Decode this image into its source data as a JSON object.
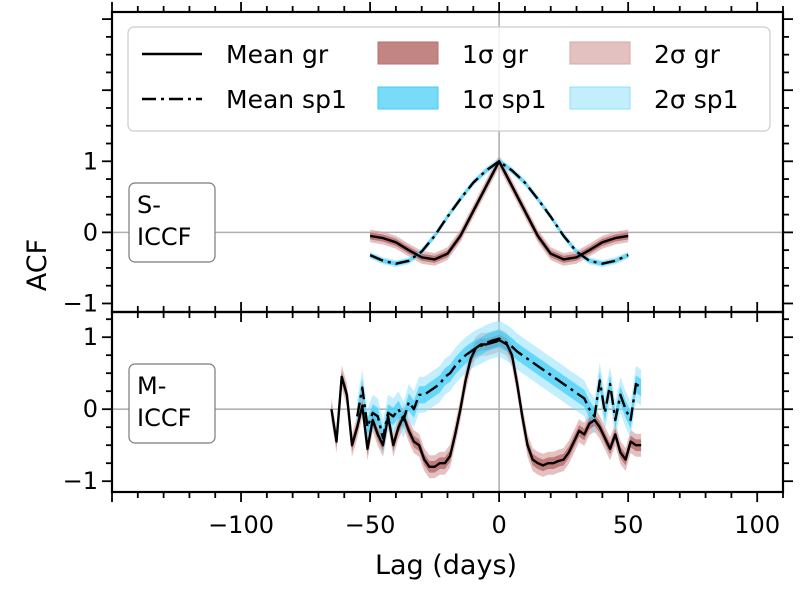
{
  "chart_data": {
    "type": "line",
    "xlabel": "Lag (days)",
    "ylabel": "ACF",
    "xlim": [
      -150,
      110
    ],
    "x_ticks": [
      {
        "value": -100,
        "label": "−100"
      },
      {
        "value": -50,
        "label": "−50"
      },
      {
        "value": 0,
        "label": "0"
      },
      {
        "value": 50,
        "label": "50"
      },
      {
        "value": 100,
        "label": "100"
      }
    ],
    "grid": "lines at x=0 and y=0",
    "legend": {
      "placement": "top",
      "entries": [
        {
          "label": "Mean gr",
          "kind": "solid-line",
          "color": "#000000"
        },
        {
          "label": "Mean sp1",
          "kind": "dashdot-line",
          "color": "#000000"
        },
        {
          "label": "1σ gr",
          "kind": "patch",
          "color": "#b86e6e",
          "alpha": 0.85
        },
        {
          "label": "1σ sp1",
          "kind": "patch",
          "color": "#3fcdf6",
          "alpha": 0.7
        },
        {
          "label": "2σ gr",
          "kind": "patch",
          "color": "#d9a6a6",
          "alpha": 0.7
        },
        {
          "label": "2σ sp1",
          "kind": "patch",
          "color": "#8fe0fb",
          "alpha": 0.55
        }
      ]
    },
    "panels": [
      {
        "name": "S-ICCF",
        "label_lines": [
          "S-",
          "ICCF"
        ],
        "ylim": [
          -1.12,
          3.1
        ],
        "y_ticks": [
          {
            "value": 1,
            "label": "1"
          },
          {
            "value": 0,
            "label": "0"
          },
          {
            "value": -1,
            "label": "−1"
          }
        ],
        "series": [
          {
            "name": "Mean gr",
            "style": "solid",
            "band1": 0.05,
            "band2": 0.09,
            "x": [
              -50,
              -45,
              -40,
              -35,
              -30,
              -25,
              -20,
              -15,
              -10,
              -5,
              0,
              5,
              10,
              15,
              20,
              25,
              30,
              35,
              40,
              45,
              50
            ],
            "y": [
              -0.05,
              -0.08,
              -0.14,
              -0.25,
              -0.35,
              -0.38,
              -0.3,
              -0.05,
              0.3,
              0.65,
              1.0,
              0.65,
              0.3,
              -0.05,
              -0.3,
              -0.38,
              -0.35,
              -0.25,
              -0.14,
              -0.08,
              -0.05
            ]
          },
          {
            "name": "Mean sp1",
            "style": "dashdot",
            "band1": 0.03,
            "band2": 0.05,
            "x": [
              -50,
              -45,
              -40,
              -35,
              -30,
              -25,
              -20,
              -15,
              -10,
              -5,
              0,
              5,
              10,
              15,
              20,
              25,
              30,
              35,
              40,
              45,
              50
            ],
            "y": [
              -0.32,
              -0.4,
              -0.44,
              -0.4,
              -0.27,
              -0.05,
              0.22,
              0.47,
              0.7,
              0.87,
              1.0,
              0.87,
              0.7,
              0.47,
              0.22,
              -0.05,
              -0.27,
              -0.4,
              -0.44,
              -0.4,
              -0.32
            ]
          }
        ]
      },
      {
        "name": "M-ICCF",
        "label_lines": [
          "M-",
          "ICCF"
        ],
        "ylim": [
          -1.15,
          1.35
        ],
        "y_ticks": [
          {
            "value": 1,
            "label": "1"
          },
          {
            "value": 0,
            "label": "0"
          },
          {
            "value": -1,
            "label": "−1"
          }
        ],
        "series": [
          {
            "name": "Mean gr",
            "style": "solid",
            "band1": 0.08,
            "band2": 0.16,
            "x": [
              -65,
              -63,
              -61,
              -59,
              -57,
              -55,
              -53,
              -51,
              -49,
              -47,
              -45,
              -43,
              -41,
              -39,
              -37,
              -35,
              -33,
              -31,
              -29,
              -27,
              -25,
              -23,
              -21,
              -19,
              -17,
              -15,
              -13,
              -11,
              -9,
              -7,
              -5,
              -3,
              -1,
              0,
              1,
              3,
              5,
              7,
              9,
              11,
              13,
              15,
              17,
              19,
              21,
              23,
              25,
              27,
              29,
              31,
              33,
              35,
              37,
              39,
              41,
              43,
              45,
              47,
              49,
              51,
              53,
              55
            ],
            "y": [
              0.0,
              -0.45,
              0.45,
              0.2,
              -0.5,
              -0.25,
              0.05,
              -0.55,
              -0.15,
              -0.35,
              -0.5,
              -0.1,
              -0.5,
              -0.25,
              -0.1,
              -0.3,
              -0.45,
              -0.5,
              -0.7,
              -0.8,
              -0.8,
              -0.75,
              -0.75,
              -0.65,
              -0.35,
              0.0,
              0.4,
              0.7,
              0.85,
              0.9,
              0.9,
              0.92,
              0.94,
              0.96,
              0.94,
              0.9,
              0.75,
              0.35,
              -0.1,
              -0.5,
              -0.7,
              -0.75,
              -0.78,
              -0.75,
              -0.75,
              -0.72,
              -0.7,
              -0.6,
              -0.45,
              -0.3,
              -0.35,
              -0.2,
              -0.15,
              -0.25,
              -0.4,
              -0.55,
              -0.35,
              -0.6,
              -0.7,
              -0.45,
              -0.5,
              -0.5
            ]
          },
          {
            "name": "Mean sp1",
            "style": "dashdot",
            "band1": 0.12,
            "band2": 0.25,
            "x": [
              -55,
              -53,
              -51,
              -49,
              -47,
              -45,
              -43,
              -41,
              -39,
              -37,
              -35,
              -33,
              -31,
              -29,
              -27,
              -25,
              -23,
              -21,
              -19,
              -17,
              -15,
              -13,
              -11,
              -9,
              -7,
              -5,
              -3,
              -1,
              0,
              1,
              3,
              5,
              7,
              9,
              11,
              13,
              15,
              17,
              19,
              21,
              23,
              25,
              27,
              29,
              31,
              33,
              35,
              37,
              39,
              41,
              43,
              45,
              47,
              49,
              51,
              53,
              55
            ],
            "y": [
              -0.1,
              0.3,
              -0.25,
              -0.05,
              -0.1,
              -0.4,
              -0.05,
              -0.1,
              0.0,
              -0.15,
              0.1,
              0.0,
              0.2,
              0.2,
              0.25,
              0.3,
              0.35,
              0.45,
              0.5,
              0.6,
              0.68,
              0.75,
              0.8,
              0.85,
              0.88,
              0.92,
              0.95,
              0.97,
              0.98,
              0.96,
              0.92,
              0.87,
              0.8,
              0.75,
              0.7,
              0.65,
              0.6,
              0.55,
              0.5,
              0.45,
              0.4,
              0.35,
              0.3,
              0.25,
              0.2,
              0.15,
              0.0,
              -0.1,
              0.4,
              -0.05,
              0.35,
              -0.15,
              0.2,
              0.0,
              -0.15,
              0.35,
              0.3
            ]
          }
        ]
      }
    ]
  }
}
